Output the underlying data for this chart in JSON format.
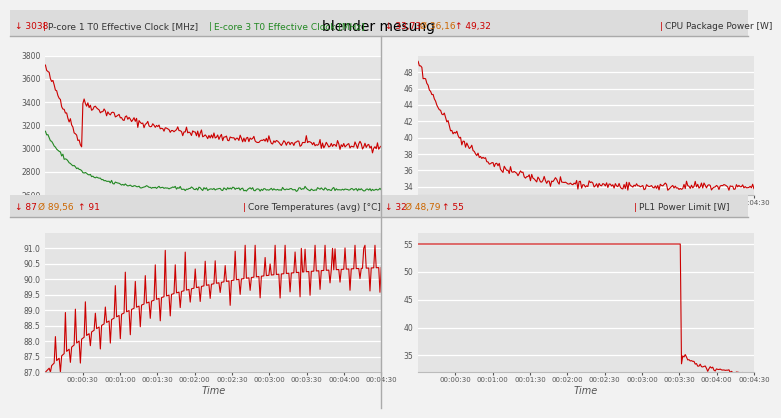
{
  "title": "blender mesung",
  "background_color": "#f2f2f2",
  "plot_bg_color": "#e4e4e4",
  "subplot1": {
    "min_label": "↓ 3038",
    "series1_label": "P-core 1 T0 Effective Clock [MHz]",
    "series2_label": "E-core 3 T0 Effective Clock [MHz]",
    "ylim": [
      2600,
      3800
    ],
    "yticks": [
      2600,
      2800,
      3000,
      3200,
      3400,
      3600,
      3800
    ],
    "color1": "#cc0000",
    "color2": "#228822"
  },
  "subplot2": {
    "min_label": "↓ 33,73",
    "avg_label": "Ø 36,16",
    "max_label": "↑ 49,32",
    "series_label": "CPU Package Power [W]",
    "ylim": [
      33,
      50
    ],
    "yticks": [
      34,
      36,
      38,
      40,
      42,
      44,
      46,
      48
    ],
    "color": "#cc0000"
  },
  "subplot3": {
    "min_label": "↓ 87",
    "avg_label": "Ø 89,56",
    "max_label": "↑ 91",
    "series_label": "Core Temperatures (avg) [°C]",
    "ylim": [
      87,
      91.5
    ],
    "yticks": [
      87.0,
      87.5,
      88.0,
      88.5,
      89.0,
      89.5,
      90.0,
      90.5,
      91.0
    ],
    "color": "#cc0000"
  },
  "subplot4": {
    "min_label": "↓ 32",
    "avg_label": "Ø 48,79",
    "max_label": "↑ 55",
    "series_label": "PL1 Power Limit [W]",
    "ylim": [
      32,
      57
    ],
    "yticks": [
      35,
      40,
      45,
      50,
      55
    ],
    "color": "#cc0000"
  },
  "xlabel": "Time",
  "time_ticks": [
    30,
    60,
    90,
    120,
    150,
    180,
    210,
    240,
    270
  ],
  "time_tick_labels": [
    "00:00:30",
    "00:01:00",
    "00:01:30",
    "00:02:00",
    "00:02:30",
    "00:03:00",
    "00:03:30",
    "00:04:00",
    "00:04:30"
  ],
  "header_bg": "#dcdcdc",
  "header_text_color": "#333333",
  "red_color": "#cc0000",
  "orange_color": "#cc6600",
  "green_color": "#228822",
  "sep_color": "#aaaaaa"
}
